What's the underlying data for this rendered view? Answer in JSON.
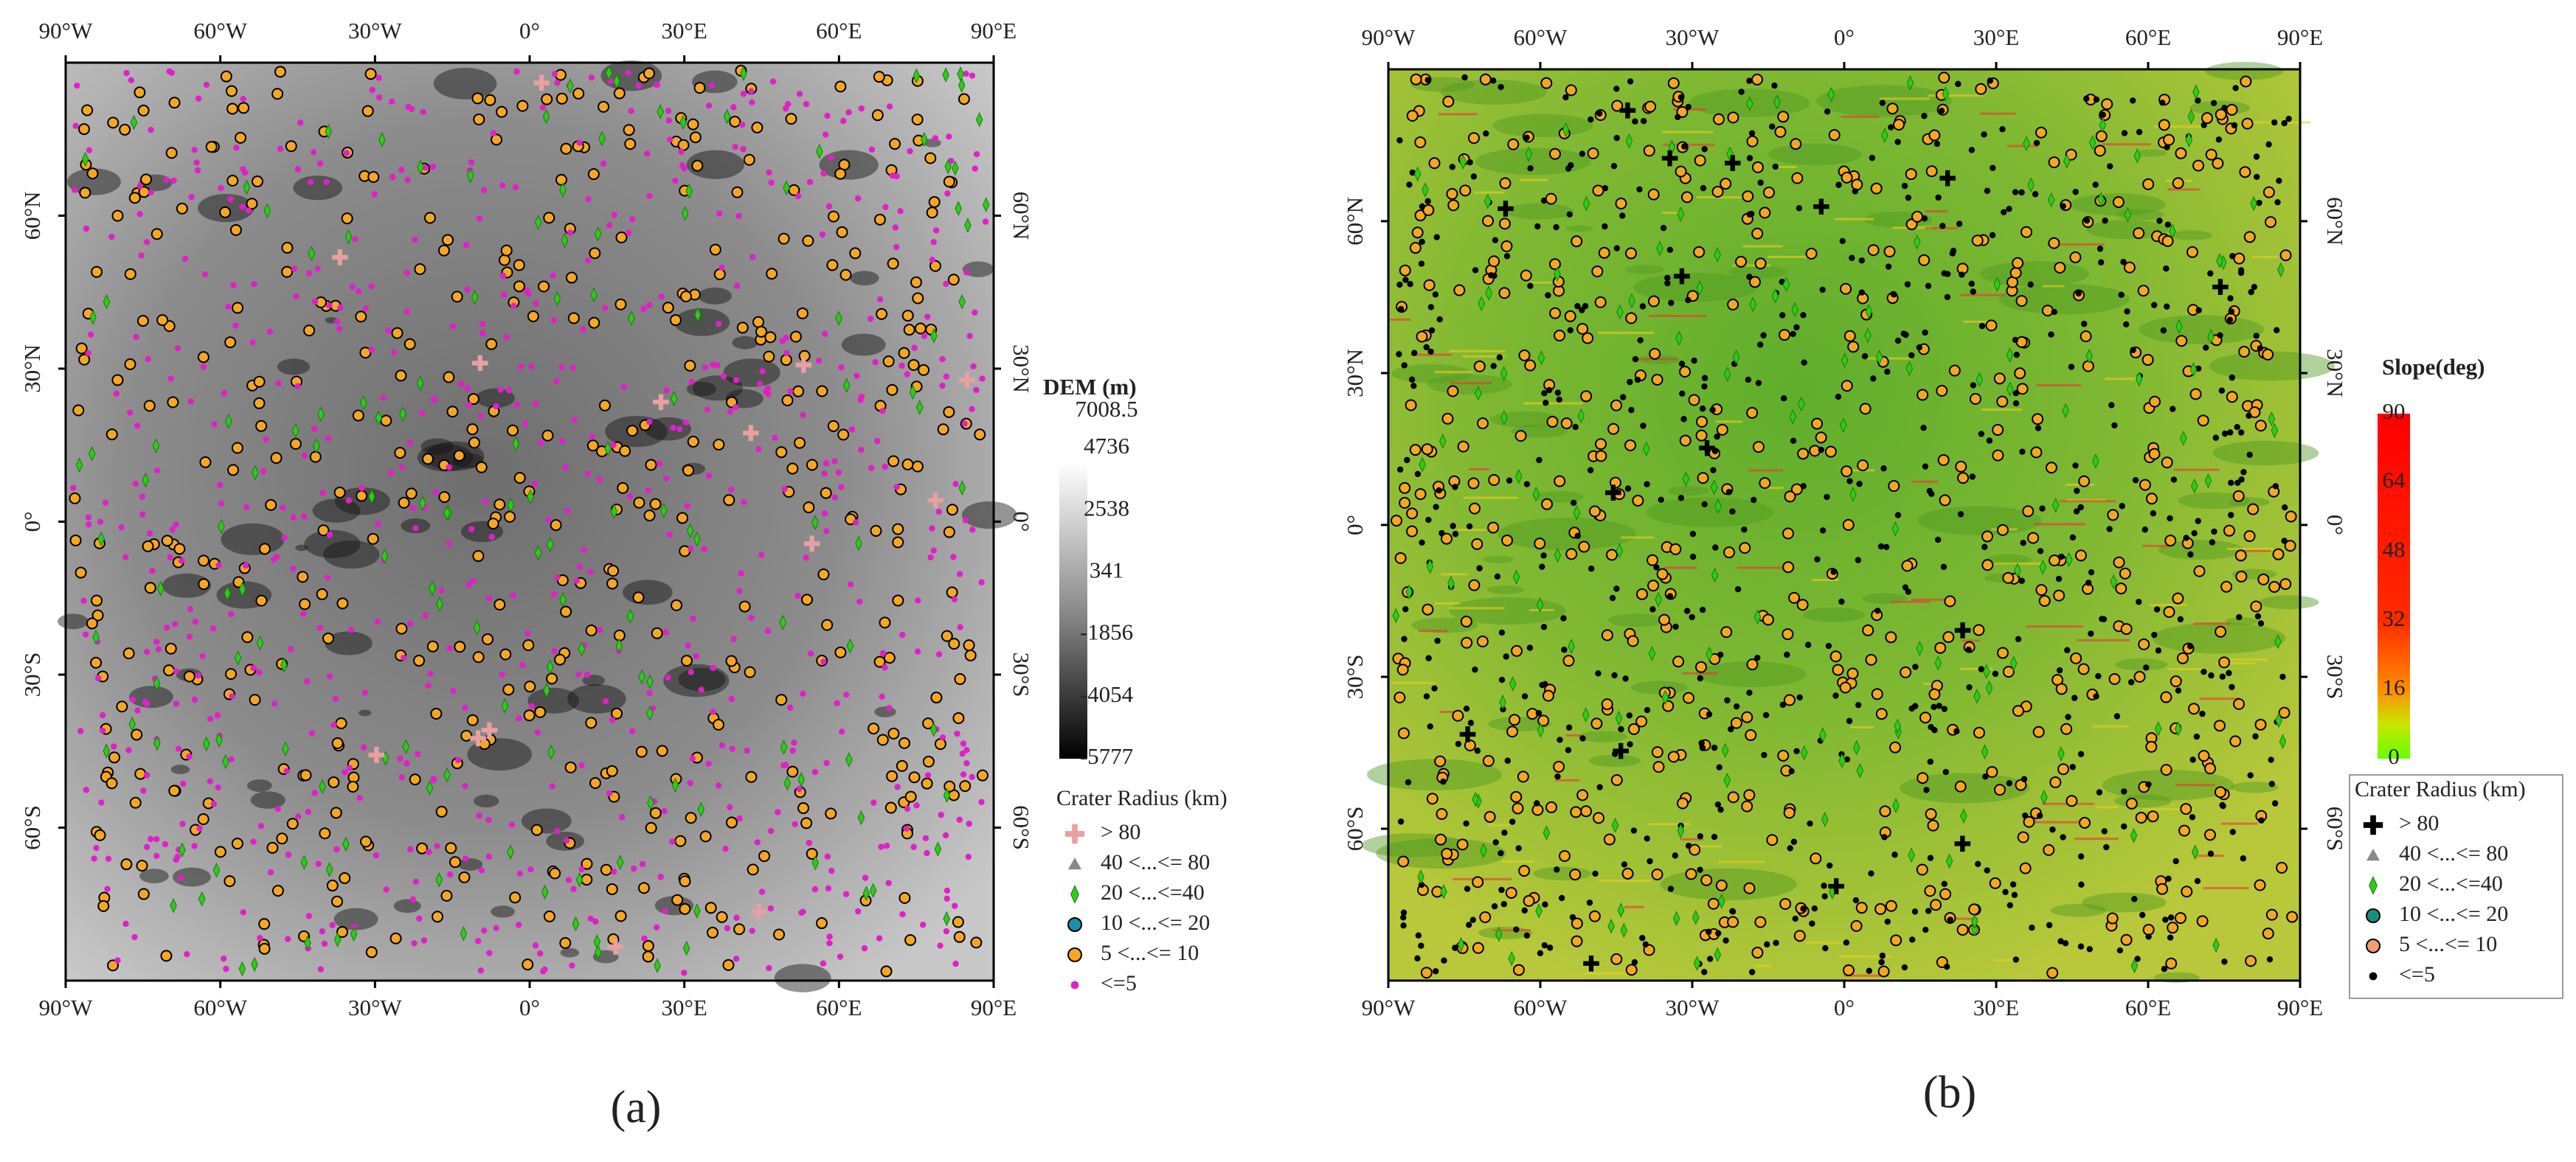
{
  "panels": [
    {
      "label": "(a)",
      "lon_ticks": [
        "90°W",
        "60°W",
        "30°W",
        "0°",
        "30°E",
        "60°E",
        "90°E"
      ],
      "lat_ticks": [
        "60°N",
        "30°N",
        "0°",
        "30°S",
        "60°S"
      ],
      "colorbar": {
        "title": "DEM (m)",
        "labels": [
          "7008.5",
          "4736",
          "2538",
          "341",
          "-1856",
          "-4054",
          "-5777"
        ]
      },
      "legend": {
        "title": "Crater Radius (km)",
        "entries": [
          "> 80",
          "40 <...<= 80",
          "20 <...<=40",
          "10 <...<= 20",
          "5 <...<= 10",
          "<=5"
        ]
      }
    },
    {
      "label": "(b)",
      "lon_ticks": [
        "90°W",
        "60°W",
        "30°W",
        "0°",
        "30°E",
        "60°E",
        "90°E"
      ],
      "lat_ticks": [
        "60°N",
        "30°N",
        "0°",
        "30°S",
        "60°S"
      ],
      "colorbar": {
        "title": "Slope(deg)",
        "labels": [
          "90",
          "64",
          "48",
          "32",
          "16",
          "0"
        ]
      },
      "legend": {
        "title": "Crater Radius (km)",
        "entries": [
          "> 80",
          "40 <...<= 80",
          "20 <...<=40",
          "10 <...<= 20",
          "5 <...<= 10",
          "<=5"
        ]
      }
    }
  ]
}
